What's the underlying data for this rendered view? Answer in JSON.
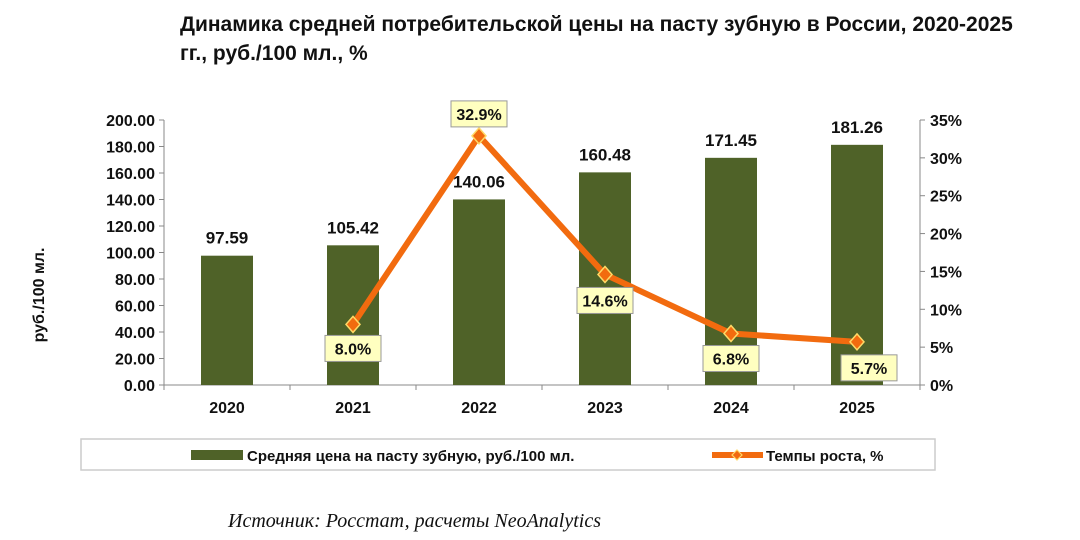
{
  "chart_data": {
    "type": "bar+line",
    "title": "Динамика средней потребительской цены на пасту зубную в России, 2020-2025 гг., руб./100 мл., %",
    "categories": [
      "2020",
      "2021",
      "2022",
      "2023",
      "2024",
      "2025"
    ],
    "series": [
      {
        "name": "Средняя цена на пасту зубную, руб./100 мл.",
        "type": "bar",
        "axis": "left",
        "values": [
          97.59,
          105.42,
          140.06,
          160.48,
          171.45,
          181.26
        ],
        "labels": [
          "97.59",
          "105.42",
          "140.06",
          "160.48",
          "171.45",
          "181.26"
        ],
        "color": "#4f6228"
      },
      {
        "name": "Темпы роста, %",
        "type": "line",
        "axis": "right",
        "values": [
          null,
          8.0,
          32.9,
          14.6,
          6.8,
          5.7
        ],
        "labels": [
          null,
          "8.0%",
          "32.9%",
          "14.6%",
          "6.8%",
          "5.7%"
        ],
        "color": "#f26b0f",
        "marker_color": "#ffd966"
      }
    ],
    "ylabel": "руб./100 мл.",
    "ylim": [
      0,
      200
    ],
    "yticks": [
      "0.00",
      "20.00",
      "40.00",
      "60.00",
      "80.00",
      "100.00",
      "120.00",
      "140.00",
      "160.00",
      "180.00",
      "200.00"
    ],
    "y2lim": [
      0,
      35
    ],
    "y2ticks": [
      "0%",
      "5%",
      "10%",
      "15%",
      "20%",
      "25%",
      "30%",
      "35%"
    ],
    "grid": false,
    "legend_placement": "bottom",
    "label_box_color": "#ffffc0"
  },
  "source": "Источник: Росстат, расчеты NeoAnalytics"
}
